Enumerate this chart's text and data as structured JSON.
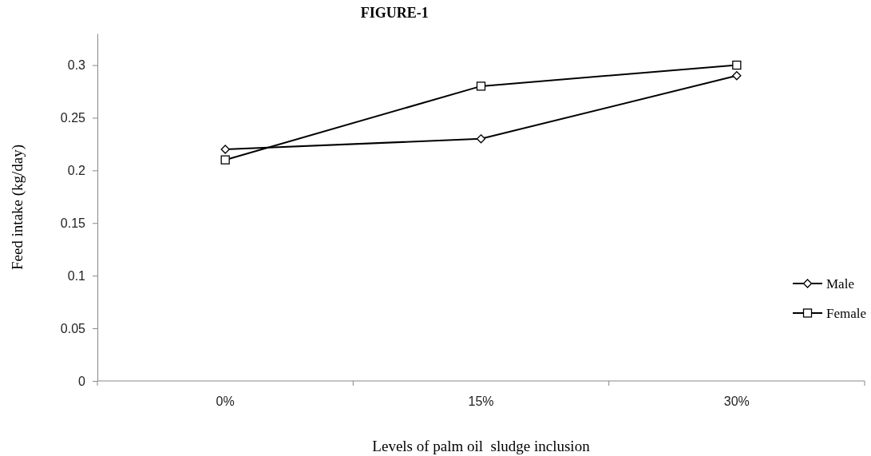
{
  "chart_data": {
    "type": "line",
    "title": "FIGURE-1",
    "xlabel": "Levels of palm oil  sludge inclusion",
    "ylabel": "Feed intake (kg/day)",
    "categories": [
      "0%",
      "15%",
      "30%"
    ],
    "series": [
      {
        "name": "Male",
        "color": "#000000",
        "marker": "diamond",
        "values": [
          0.22,
          0.23,
          0.29
        ]
      },
      {
        "name": "Female",
        "color": "#000000",
        "marker": "square",
        "values": [
          0.21,
          0.28,
          0.3
        ]
      }
    ],
    "ylim": [
      0,
      0.33
    ],
    "yticks": [
      0,
      0.05,
      0.1,
      0.15,
      0.2,
      0.25,
      0.3
    ],
    "legend": "right",
    "grid": false,
    "line_style": "solid"
  }
}
